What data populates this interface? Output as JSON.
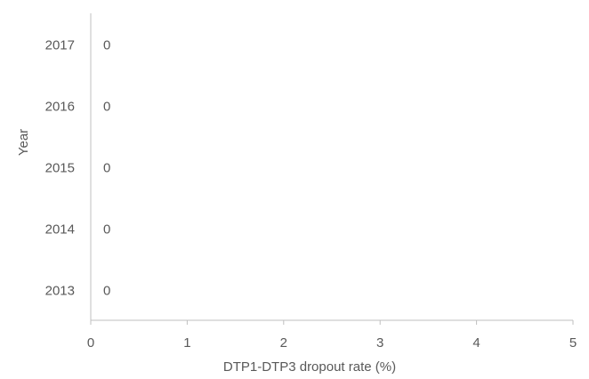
{
  "chart_data": {
    "type": "bar",
    "orientation": "horizontal",
    "categories": [
      "2013",
      "2014",
      "2015",
      "2016",
      "2017"
    ],
    "values": [
      0,
      0,
      0,
      0,
      0
    ],
    "data_labels": [
      "0",
      "0",
      "0",
      "0",
      "0"
    ],
    "xlabel": "DTP1-DTP3 dropout rate (%)",
    "ylabel": "Year",
    "xlim": [
      0,
      5
    ],
    "xticks": [
      "0",
      "1",
      "2",
      "3",
      "4",
      "5"
    ],
    "grid": false,
    "colors": {
      "axis": "#bfbfbf",
      "text": "#595959",
      "bar": "#4472c4"
    }
  }
}
